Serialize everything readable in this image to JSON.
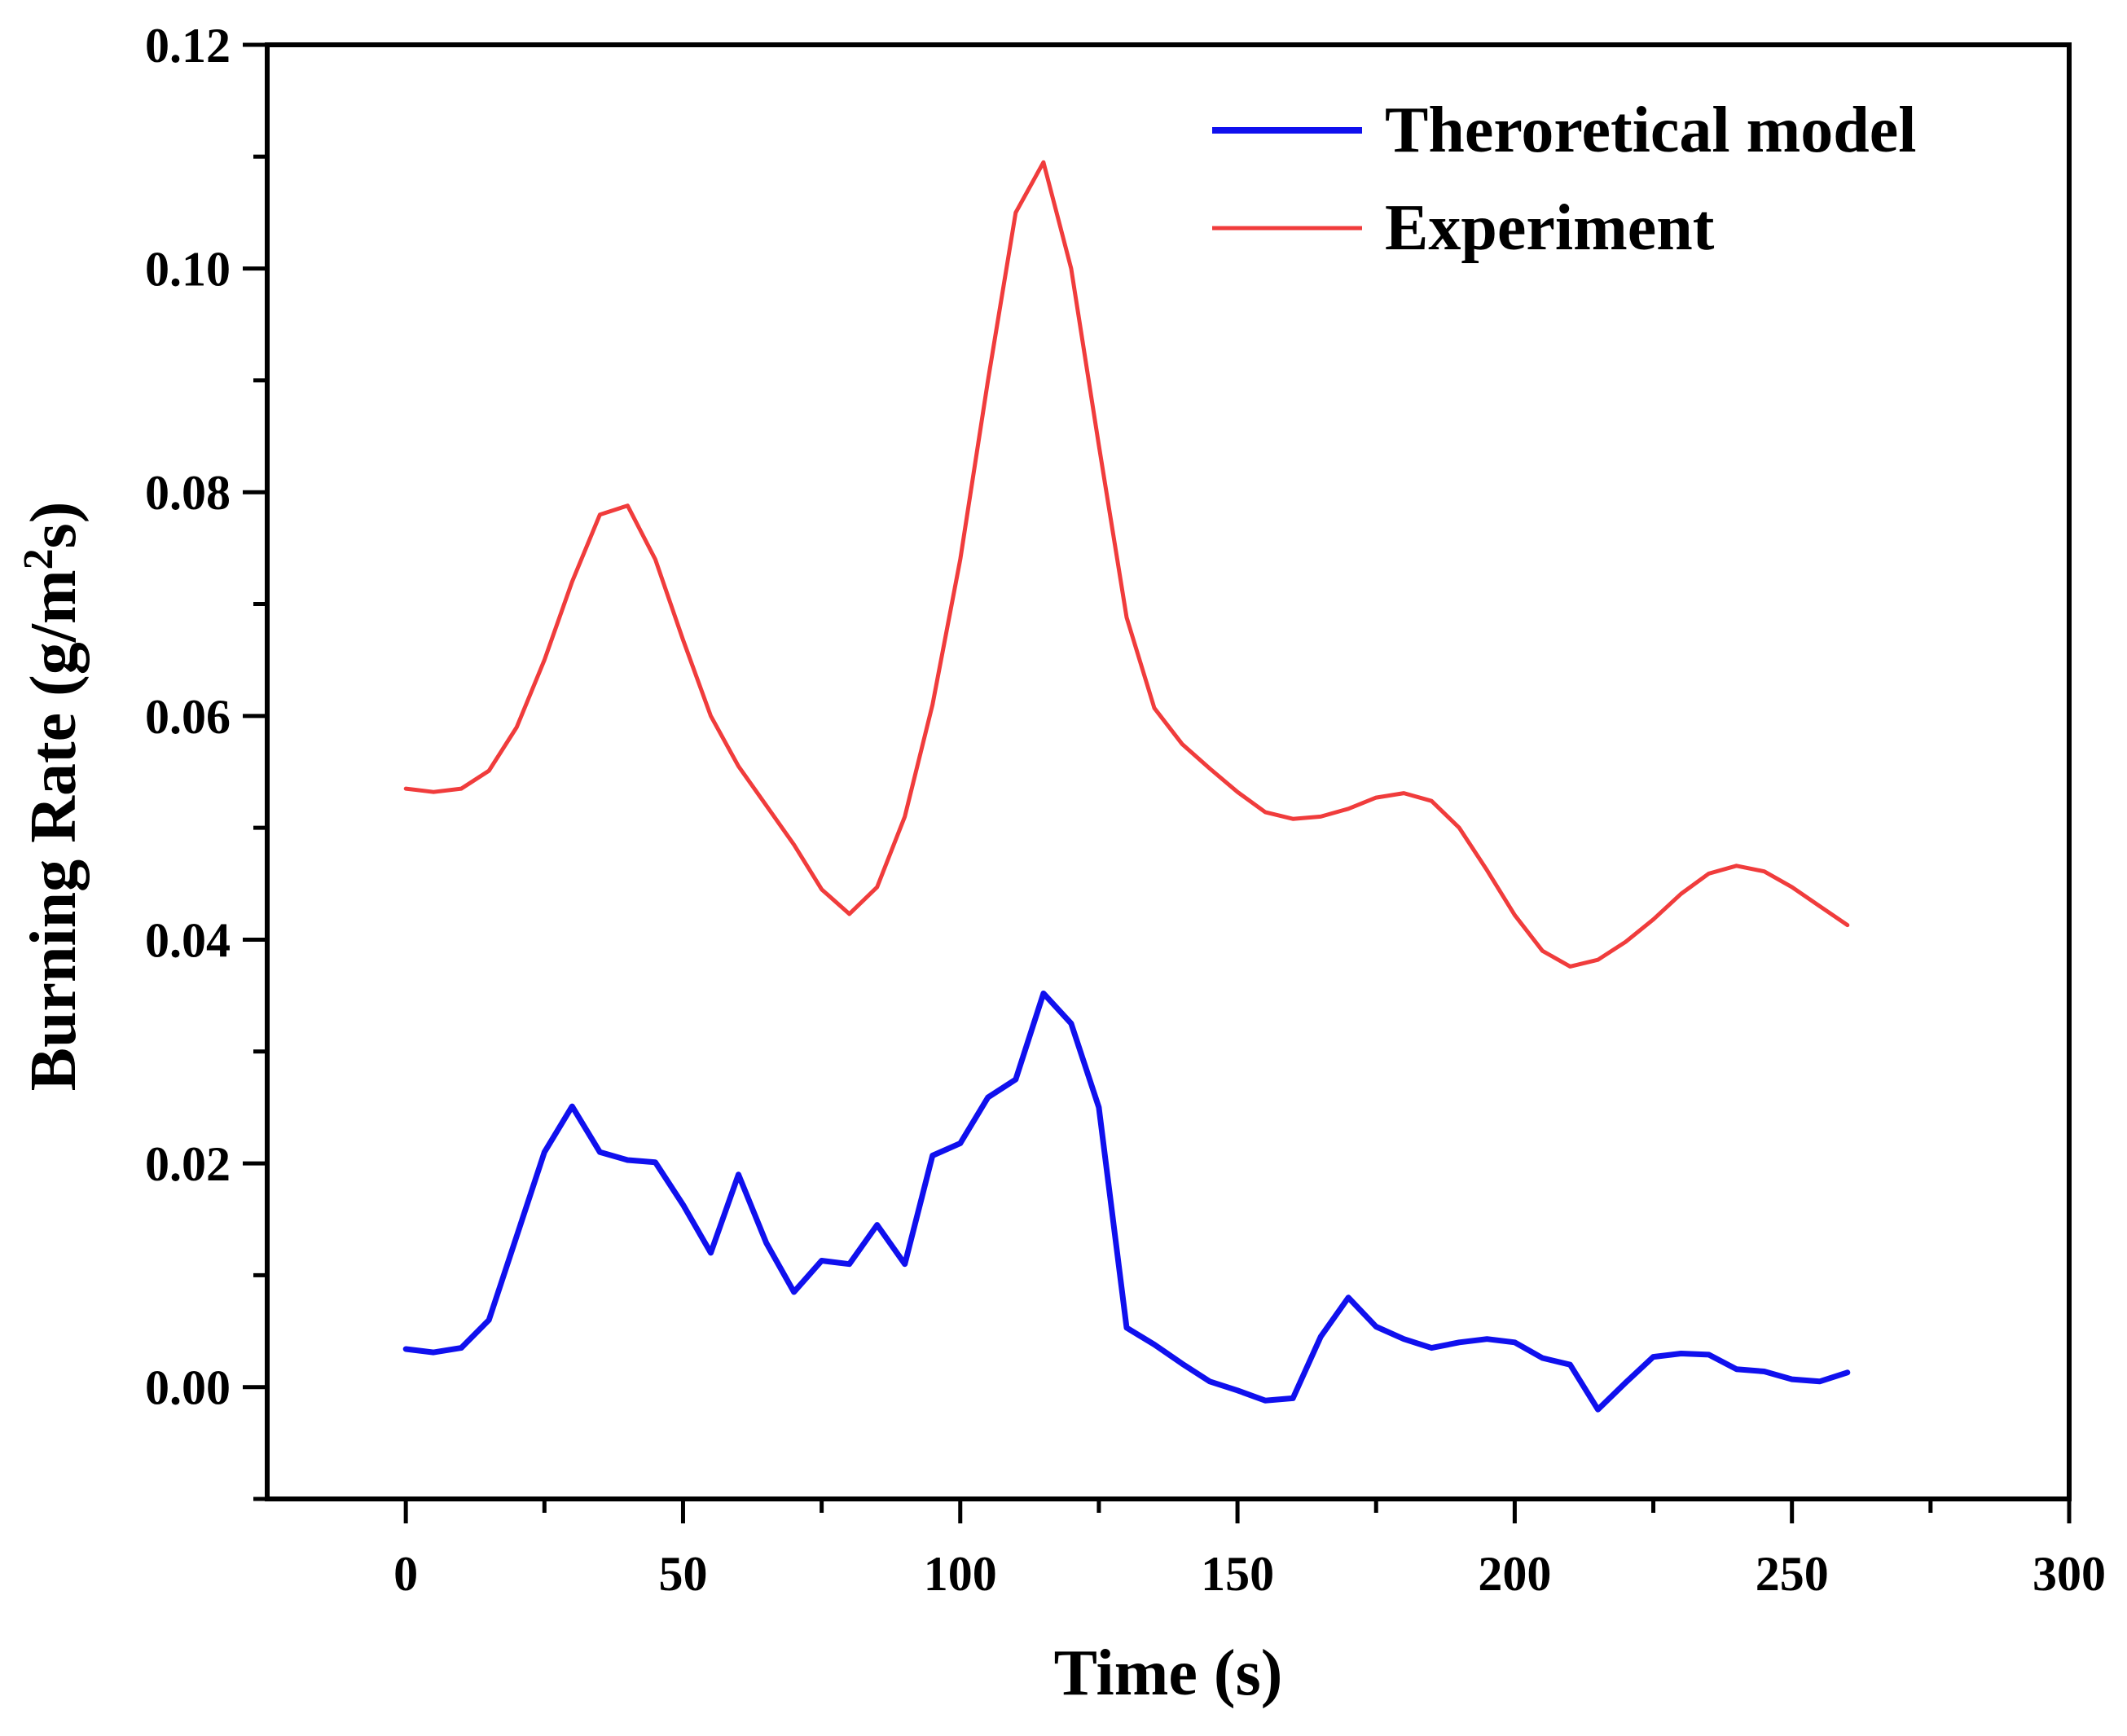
{
  "chart_data": {
    "type": "line",
    "title": "",
    "xlabel": "Time (s)",
    "ylabel_main": "Burning Rate (g/m",
    "ylabel_sup": "2",
    "ylabel_tail": "s)",
    "xlim": [
      -25,
      300
    ],
    "ylim": [
      -0.01,
      0.12
    ],
    "x_ticks": [
      0,
      50,
      100,
      150,
      200,
      250,
      300
    ],
    "x_tick_labels": [
      "0",
      "50",
      "100",
      "150",
      "200",
      "250",
      "300"
    ],
    "y_ticks": [
      0,
      0.02,
      0.04,
      0.06,
      0.08,
      0.1,
      0.12
    ],
    "y_tick_labels": [
      "0.00",
      "0.02",
      "0.04",
      "0.06",
      "0.08",
      "0.10",
      "0.12"
    ],
    "grid": false,
    "legend_position": "top-right",
    "series": [
      {
        "name": "Theroretical model",
        "color": "#1010ee",
        "x": [
          0,
          5,
          10,
          15,
          20,
          25,
          30,
          35,
          40,
          45,
          50,
          55,
          60,
          65,
          70,
          75,
          80,
          85,
          90,
          95,
          100,
          105,
          110,
          115,
          120,
          125,
          130,
          135,
          140,
          145,
          150,
          155,
          160,
          165,
          170,
          175,
          180,
          185,
          190,
          195,
          200,
          205,
          210,
          215,
          220,
          225,
          230,
          235,
          240,
          245,
          250,
          255,
          260
        ],
        "values": [
          0.0034,
          0.0031,
          0.0035,
          0.006,
          0.0135,
          0.021,
          0.0251,
          0.021,
          0.0203,
          0.0201,
          0.0163,
          0.012,
          0.019,
          0.0129,
          0.0085,
          0.0113,
          0.011,
          0.0145,
          0.011,
          0.0207,
          0.0218,
          0.0259,
          0.0275,
          0.0352,
          0.0325,
          0.025,
          0.0053,
          0.0038,
          0.0021,
          0.0005,
          -0.0003,
          -0.0012,
          -0.001,
          0.0045,
          0.008,
          0.0054,
          0.0043,
          0.0035,
          0.004,
          0.0043,
          0.004,
          0.0026,
          0.002,
          -0.002,
          0.0004,
          0.0027,
          0.003,
          0.0029,
          0.0016,
          0.0014,
          0.0007,
          0.0005,
          0.0013
        ]
      },
      {
        "name": "Experiment",
        "color": "#f03c3c",
        "x": [
          0,
          5,
          10,
          15,
          20,
          25,
          30,
          35,
          40,
          45,
          50,
          55,
          60,
          65,
          70,
          75,
          80,
          85,
          90,
          95,
          100,
          105,
          110,
          115,
          120,
          125,
          130,
          135,
          140,
          145,
          150,
          155,
          160,
          165,
          170,
          175,
          180,
          185,
          190,
          195,
          200,
          205,
          210,
          215,
          220,
          225,
          230,
          235,
          240,
          245,
          250,
          255,
          260
        ],
        "values": [
          0.0535,
          0.0532,
          0.0535,
          0.0551,
          0.059,
          0.065,
          0.072,
          0.078,
          0.0788,
          0.074,
          0.0668,
          0.06,
          0.0555,
          0.052,
          0.0485,
          0.0445,
          0.0423,
          0.0447,
          0.051,
          0.061,
          0.074,
          0.09,
          0.105,
          0.1095,
          0.1,
          0.0842,
          0.0688,
          0.0607,
          0.0575,
          0.0553,
          0.0532,
          0.0514,
          0.0508,
          0.051,
          0.0517,
          0.0527,
          0.0531,
          0.0524,
          0.05,
          0.0462,
          0.0422,
          0.039,
          0.0376,
          0.0382,
          0.0398,
          0.0418,
          0.0441,
          0.0459,
          0.0466,
          0.0461,
          0.0447,
          0.043,
          0.0413
        ]
      }
    ]
  }
}
